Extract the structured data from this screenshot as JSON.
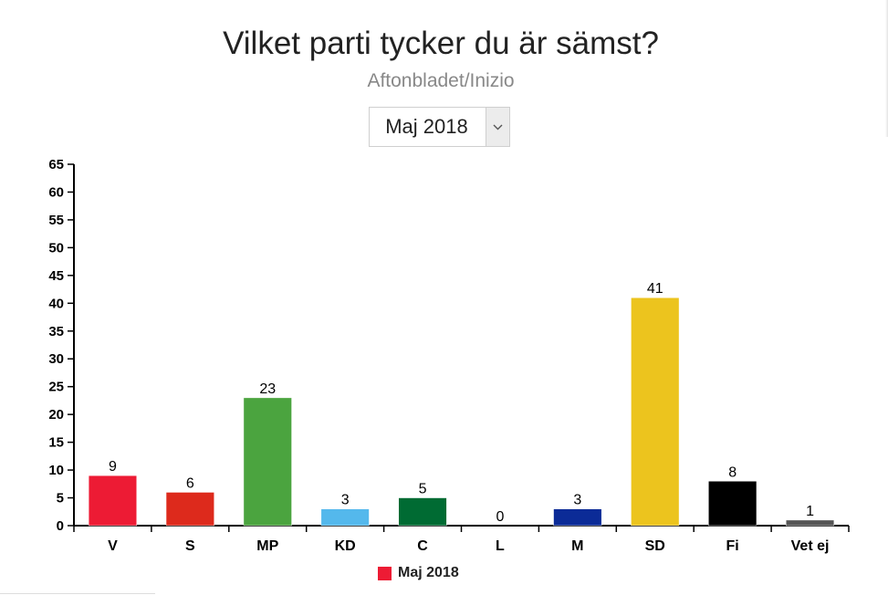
{
  "header": {
    "title": "Vilket parti tycker du är sämst?",
    "subtitle": "Aftonbladet/Inizio"
  },
  "period_select": {
    "value": "Maj 2018",
    "arrow_icon": "chevron-down-icon"
  },
  "chart_data": {
    "type": "bar",
    "title": "Vilket parti tycker du är sämst?",
    "subtitle": "Aftonbladet/Inizio",
    "xlabel": "",
    "ylabel": "",
    "ylim": [
      0,
      65
    ],
    "yticks": [
      0,
      5,
      10,
      15,
      20,
      25,
      30,
      35,
      40,
      45,
      50,
      55,
      60,
      65
    ],
    "categories": [
      "V",
      "S",
      "MP",
      "KD",
      "C",
      "L",
      "M",
      "SD",
      "Fi",
      "Vet ej"
    ],
    "series": [
      {
        "name": "Maj 2018",
        "values": [
          9,
          6,
          23,
          3,
          5,
          0,
          3,
          41,
          8,
          1
        ],
        "colors": [
          "#ed1b34",
          "#dd2a1c",
          "#4ba43f",
          "#54b8ec",
          "#006b33",
          "#006ab3",
          "#0b2b97",
          "#ecc41e",
          "#000000",
          "#555555"
        ]
      }
    ],
    "legend": {
      "position": "bottom-center",
      "entries": [
        "Maj 2018"
      ],
      "color": "#ed1b34"
    }
  }
}
